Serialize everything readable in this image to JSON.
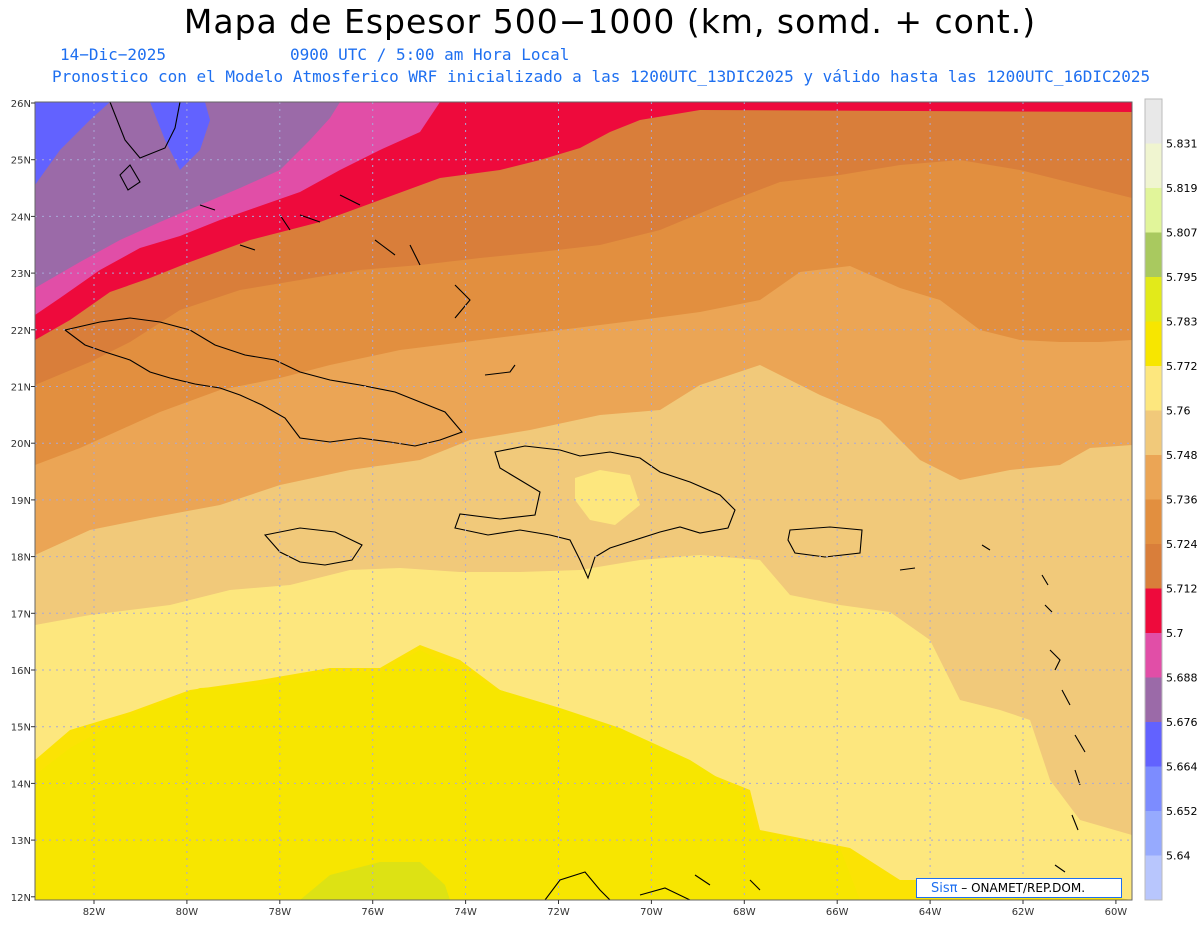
{
  "header": {
    "title": "Mapa de Espesor 500−1000 (km, somd. + cont.)",
    "date": "14−Dic−2025",
    "time": "0900 UTC / 5:00 am Hora Local",
    "info": "Pronostico con el Modelo Atmosferico WRF inicializado a las 1200UTC_13DIC2025 y válido hasta las  1200UTC_16DIC2025"
  },
  "map": {
    "lat_labels": [
      "26N",
      "25N",
      "24N",
      "23N",
      "22N",
      "21N",
      "20N",
      "19N",
      "18N",
      "17N",
      "16N",
      "15N",
      "14N",
      "13N",
      "12N"
    ],
    "lon_labels": [
      "82W",
      "80W",
      "78W",
      "76W",
      "74W",
      "72W",
      "70W",
      "68W",
      "66W",
      "64W",
      "62W",
      "60W"
    ],
    "fill_colors": [
      "#e8f0a8",
      "#ee0a3c",
      "#d97e3a",
      "#e28f3f",
      "#eba555",
      "#f1c97a",
      "#fde77e",
      "#fbe304",
      "#dde214"
    ],
    "grid_color": "#a8a8d8"
  },
  "colorbar": {
    "labels": [
      "5.831",
      "5.819",
      "5.807",
      "5.795",
      "5.783",
      "5.772",
      "5.76",
      "5.748",
      "5.736",
      "5.724",
      "5.712",
      "5.7",
      "5.688",
      "5.676",
      "5.664",
      "5.652",
      "5.64"
    ],
    "colors": [
      "#e8e8e8",
      "#f0f5d0",
      "#e1f59a",
      "#a9c95f",
      "#e2ea1a",
      "#f7e600",
      "#fde77e",
      "#f1c97a",
      "#eba555",
      "#e28f3f",
      "#d97e3a",
      "#ee0a3c",
      "#e14ea7",
      "#9b6aa8",
      "#6262ff",
      "#7c8cff",
      "#96aafe",
      "#b8c6fd"
    ]
  },
  "credit": {
    "sis": "Sisπ",
    "org": "– ONAMET/REP.DOM."
  }
}
